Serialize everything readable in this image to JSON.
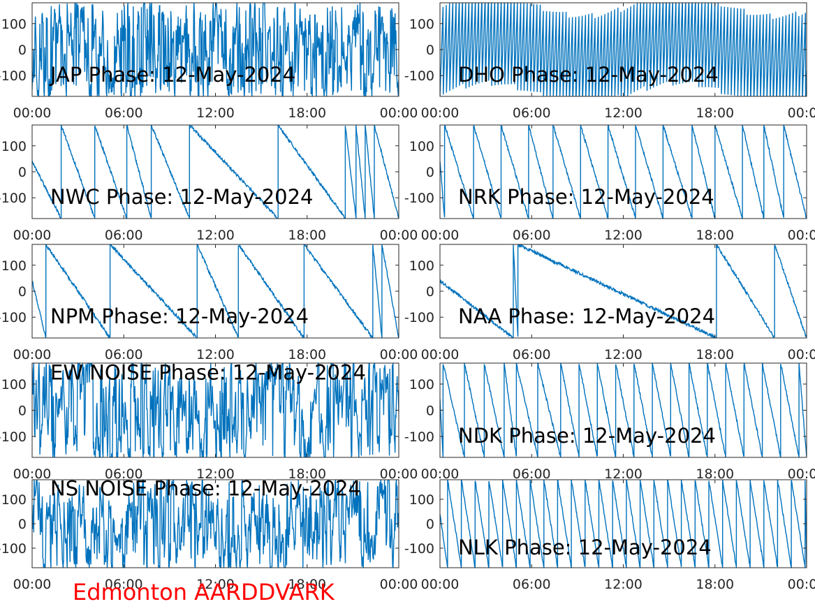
{
  "footer": {
    "station": "Edmonton AARDDVARK"
  },
  "colors": {
    "trace": "#0072BD",
    "axes": "#262626",
    "caption": "#ff0000"
  },
  "chart_data": [
    {
      "type": "line",
      "title": "JAP Phase: 12-May-2024",
      "signal": "noise-fast",
      "x_ticks": [
        "00:00",
        "06:00",
        "12:00",
        "18:00",
        "00:00"
      ],
      "y_ticks": [
        "100",
        "0",
        "-100"
      ],
      "ylim": [
        -180,
        180
      ],
      "xlim": [
        0,
        24
      ]
    },
    {
      "type": "line",
      "title": "DHO Phase: 12-May-2024",
      "signal": "fast-wrap",
      "x_ticks": [
        "00:00",
        "06:00",
        "12:00",
        "18:00",
        "00:00"
      ],
      "y_ticks": [
        "100",
        "0",
        "-100"
      ],
      "ylim": [
        -180,
        180
      ],
      "xlim": [
        0,
        24
      ]
    },
    {
      "type": "line",
      "title": "NWC Phase: 12-May-2024",
      "signal": "sawtooth",
      "x_ticks": [
        "00:00",
        "06:00",
        "12:00",
        "18:00",
        "00:00"
      ],
      "y_ticks": [
        "100",
        "0",
        "-100"
      ],
      "ylim": [
        -180,
        180
      ],
      "xlim": [
        0,
        24
      ],
      "wrap_hours": [
        1.9,
        4.1,
        6.2,
        7.8,
        10.3,
        16.1,
        20.5,
        21.2,
        21.8,
        22.4
      ]
    },
    {
      "type": "line",
      "title": "NRK Phase: 12-May-2024",
      "signal": "sawtooth",
      "x_ticks": [
        "00:00",
        "06:00",
        "12:00",
        "18:00",
        "00:00"
      ],
      "y_ticks": [
        "100",
        "0",
        "-100"
      ],
      "ylim": [
        -180,
        180
      ],
      "xlim": [
        0,
        24
      ],
      "wrap_hours": [
        0.3,
        2.2,
        4.0,
        5.8,
        7.4,
        9.2,
        11.0,
        12.8,
        14.6,
        16.5,
        18.0,
        19.8,
        21.2,
        22.5
      ]
    },
    {
      "type": "line",
      "title": "NPM Phase: 12-May-2024",
      "signal": "sawtooth",
      "x_ticks": [
        "00:00",
        "06:00",
        "12:00",
        "18:00",
        "00:00"
      ],
      "y_ticks": [
        "100",
        "0",
        "-100"
      ],
      "ylim": [
        -180,
        180
      ],
      "xlim": [
        0,
        24
      ],
      "wrap_hours": [
        0.9,
        5.1,
        10.8,
        13.5,
        17.8,
        22.3,
        22.9
      ]
    },
    {
      "type": "line",
      "title": "NAA Phase: 12-May-2024",
      "signal": "sawtooth",
      "x_ticks": [
        "00:00",
        "06:00",
        "12:00",
        "18:00",
        "00:00"
      ],
      "y_ticks": [
        "100",
        "0",
        "-100"
      ],
      "ylim": [
        -180,
        180
      ],
      "xlim": [
        0,
        24
      ],
      "wrap_hours": [
        4.8,
        5.1,
        18.1,
        21.9
      ]
    },
    {
      "type": "line",
      "title": "EW NOISE Phase: 12-May-2024",
      "signal": "noise",
      "x_ticks": [
        "00:00",
        "06:00",
        "12:00",
        "18:00",
        "00:00"
      ],
      "y_ticks": [
        "100",
        "0",
        "-100"
      ],
      "ylim": [
        -180,
        180
      ],
      "xlim": [
        0,
        24
      ]
    },
    {
      "type": "line",
      "title": "NDK Phase: 12-May-2024",
      "signal": "sawtooth",
      "x_ticks": [
        "00:00",
        "06:00",
        "12:00",
        "18:00",
        "00:00"
      ],
      "y_ticks": [
        "100",
        "0",
        "-100"
      ],
      "ylim": [
        -180,
        180
      ],
      "xlim": [
        0,
        24
      ],
      "wrap_hours": [
        0.2,
        1.6,
        2.9,
        4.2,
        5.0,
        6.4,
        7.9,
        9.1,
        10.3,
        11.5,
        12.7,
        13.9,
        15.1,
        16.3,
        17.5,
        18.7,
        19.9,
        21.1,
        22.3,
        23.5
      ]
    },
    {
      "type": "line",
      "title": "NS NOISE Phase: 12-May-2024",
      "signal": "noise",
      "x_ticks": [
        "00:00",
        "06:00",
        "12:00",
        "18:00",
        "00:00"
      ],
      "y_ticks": [
        "100",
        "0",
        "-100"
      ],
      "ylim": [
        -180,
        180
      ],
      "xlim": [
        0,
        24
      ]
    },
    {
      "type": "line",
      "title": "NLK Phase: 12-May-2024",
      "signal": "sawtooth",
      "x_ticks": [
        "00:00",
        "06:00",
        "12:00",
        "18:00",
        "00:00"
      ],
      "y_ticks": [
        "100",
        "0",
        "-100"
      ],
      "ylim": [
        -180,
        180
      ],
      "xlim": [
        0,
        24
      ],
      "wrap_hours": [
        0.5,
        1.4,
        2.3,
        3.2,
        4.1,
        5.0,
        5.9,
        6.8,
        7.7,
        8.6,
        9.5,
        10.4,
        11.3,
        12.2,
        13.1,
        14.0,
        14.9,
        15.8,
        16.7,
        17.6,
        18.5,
        19.4,
        20.3,
        21.2,
        22.1,
        23.0,
        23.9
      ]
    }
  ]
}
